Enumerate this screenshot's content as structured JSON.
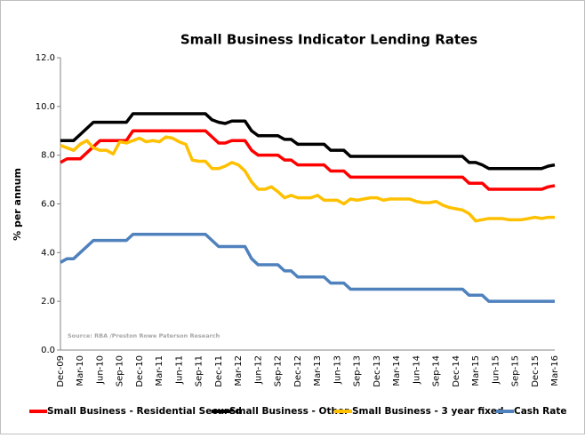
{
  "chart_data": {
    "type": "line",
    "title": "Small Business Indicator Lending Rates",
    "y_label": "% per annum",
    "annotation": "Source: RBA /Preston Rowe Paterson Research",
    "categories": [
      "Dec-09",
      null,
      null,
      "Mar-10",
      null,
      null,
      "Jun-10",
      null,
      null,
      "Sep-10",
      null,
      null,
      "Dec-10",
      null,
      null,
      "Mar-11",
      null,
      null,
      "Jun-11",
      null,
      null,
      "Sep-11",
      null,
      null,
      "Dec-11",
      null,
      null,
      "Mar-12",
      null,
      null,
      "Jun-12",
      null,
      null,
      "Sep-12",
      null,
      null,
      "Dec-12",
      null,
      null,
      "Mar-13",
      null,
      null,
      "Jun-13",
      null,
      null,
      "Sep-13",
      null,
      null,
      "Dec-13",
      null,
      null,
      "Mar-14",
      null,
      null,
      "Jun-14",
      null,
      null,
      "Sep-14",
      null,
      null,
      "Dec-14",
      null,
      null,
      "Mar-15",
      null,
      null,
      "Jun-15",
      null,
      null,
      "Sep-15",
      null,
      null,
      "Dec-15",
      null,
      null,
      "Mar-16"
    ],
    "series": [
      {
        "name": "Small Business - Residential Secured",
        "color": "#ff0000",
        "values": [
          7.7,
          7.85,
          7.85,
          7.85,
          8.1,
          8.35,
          8.6,
          8.6,
          8.6,
          8.6,
          8.6,
          9.0,
          9.0,
          9.0,
          9.0,
          9.0,
          9.0,
          9.0,
          9.0,
          9.0,
          9.0,
          9.0,
          9.0,
          8.75,
          8.5,
          8.5,
          8.6,
          8.6,
          8.6,
          8.2,
          8.0,
          8.0,
          8.0,
          8.0,
          7.8,
          7.8,
          7.6,
          7.6,
          7.6,
          7.6,
          7.6,
          7.35,
          7.35,
          7.35,
          7.1,
          7.1,
          7.1,
          7.1,
          7.1,
          7.1,
          7.1,
          7.1,
          7.1,
          7.1,
          7.1,
          7.1,
          7.1,
          7.1,
          7.1,
          7.1,
          7.1,
          7.1,
          6.85,
          6.85,
          6.85,
          6.6,
          6.6,
          6.6,
          6.6,
          6.6,
          6.6,
          6.6,
          6.6,
          6.6,
          6.7,
          6.75
        ]
      },
      {
        "name": "Small Business - Other",
        "color": "#000000",
        "values": [
          8.6,
          8.6,
          8.6,
          8.85,
          9.1,
          9.35,
          9.35,
          9.35,
          9.35,
          9.35,
          9.35,
          9.7,
          9.7,
          9.7,
          9.7,
          9.7,
          9.7,
          9.7,
          9.7,
          9.7,
          9.7,
          9.7,
          9.7,
          9.45,
          9.35,
          9.3,
          9.4,
          9.4,
          9.4,
          9.0,
          8.8,
          8.8,
          8.8,
          8.8,
          8.65,
          8.65,
          8.45,
          8.45,
          8.45,
          8.45,
          8.45,
          8.2,
          8.2,
          8.2,
          7.95,
          7.95,
          7.95,
          7.95,
          7.95,
          7.95,
          7.95,
          7.95,
          7.95,
          7.95,
          7.95,
          7.95,
          7.95,
          7.95,
          7.95,
          7.95,
          7.95,
          7.95,
          7.7,
          7.7,
          7.6,
          7.45,
          7.45,
          7.45,
          7.45,
          7.45,
          7.45,
          7.45,
          7.45,
          7.45,
          7.55,
          7.6
        ]
      },
      {
        "name": "Small Business - 3 year fixed",
        "color": "#ffc000",
        "values": [
          8.4,
          8.3,
          8.2,
          8.45,
          8.6,
          8.3,
          8.2,
          8.2,
          8.05,
          8.55,
          8.5,
          8.6,
          8.7,
          8.55,
          8.6,
          8.55,
          8.75,
          8.7,
          8.55,
          8.45,
          7.8,
          7.75,
          7.75,
          7.45,
          7.45,
          7.55,
          7.7,
          7.6,
          7.35,
          6.9,
          6.6,
          6.6,
          6.7,
          6.5,
          6.25,
          6.35,
          6.25,
          6.25,
          6.25,
          6.35,
          6.15,
          6.15,
          6.15,
          6.0,
          6.2,
          6.15,
          6.2,
          6.25,
          6.25,
          6.15,
          6.2,
          6.2,
          6.2,
          6.2,
          6.1,
          6.05,
          6.05,
          6.1,
          5.95,
          5.85,
          5.8,
          5.75,
          5.6,
          5.3,
          5.35,
          5.4,
          5.4,
          5.4,
          5.35,
          5.35,
          5.35,
          5.4,
          5.45,
          5.4,
          5.45,
          5.45
        ]
      },
      {
        "name": "Cash Rate",
        "color": "#4f81bd",
        "values": [
          3.6,
          3.75,
          3.75,
          4.0,
          4.25,
          4.5,
          4.5,
          4.5,
          4.5,
          4.5,
          4.5,
          4.75,
          4.75,
          4.75,
          4.75,
          4.75,
          4.75,
          4.75,
          4.75,
          4.75,
          4.75,
          4.75,
          4.75,
          4.5,
          4.25,
          4.25,
          4.25,
          4.25,
          4.25,
          3.75,
          3.5,
          3.5,
          3.5,
          3.5,
          3.25,
          3.25,
          3.0,
          3.0,
          3.0,
          3.0,
          3.0,
          2.75,
          2.75,
          2.75,
          2.5,
          2.5,
          2.5,
          2.5,
          2.5,
          2.5,
          2.5,
          2.5,
          2.5,
          2.5,
          2.5,
          2.5,
          2.5,
          2.5,
          2.5,
          2.5,
          2.5,
          2.5,
          2.25,
          2.25,
          2.25,
          2.0,
          2.0,
          2.0,
          2.0,
          2.0,
          2.0,
          2.0,
          2.0,
          2.0,
          2.0,
          2.0
        ]
      }
    ],
    "ylim": [
      0,
      12
    ],
    "yticks": [
      {
        "value": 0,
        "label": "0.0"
      },
      {
        "value": 2,
        "label": "2.0"
      },
      {
        "value": 4,
        "label": "4.0"
      },
      {
        "value": 6,
        "label": "6.0"
      },
      {
        "value": 8,
        "label": "8.0"
      },
      {
        "value": 10,
        "label": "10.0"
      },
      {
        "value": 12,
        "label": "12.0"
      }
    ],
    "grid": false,
    "legend": "bottom"
  }
}
